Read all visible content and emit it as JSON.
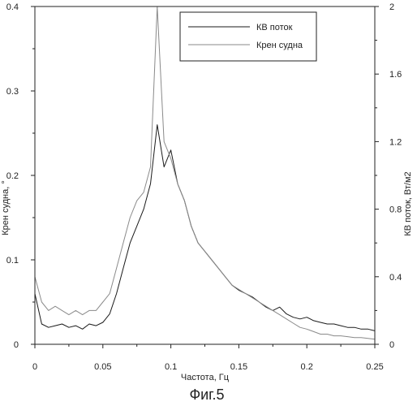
{
  "chart_data": {
    "type": "line",
    "xlabel": "Частота, Гц",
    "ylabel_left": "Крен судна, °",
    "ylabel_right": "КВ поток, Вт/м2",
    "xlim": [
      0,
      0.25
    ],
    "ylim_left": [
      0,
      0.4
    ],
    "ylim_right": [
      0,
      2
    ],
    "x_ticks": [
      "0",
      "0.05",
      "0.1",
      "0.15",
      "0.2",
      "0.25"
    ],
    "y_left_ticks": [
      "0",
      "0.1",
      "0.2",
      "0.3",
      "0.4"
    ],
    "y_right_ticks": [
      "0",
      "0.4",
      "0.8",
      "1.2",
      "1.6",
      "2"
    ],
    "grid": false,
    "legend_position": "top-right",
    "caption": "Фиг.5",
    "series": [
      {
        "name": "КВ поток",
        "axis": "right",
        "color": "#1a1a1a",
        "x": [
          0.0,
          0.005,
          0.01,
          0.015,
          0.02,
          0.025,
          0.03,
          0.035,
          0.04,
          0.045,
          0.05,
          0.055,
          0.06,
          0.065,
          0.07,
          0.075,
          0.08,
          0.085,
          0.09,
          0.095,
          0.1,
          0.105,
          0.11,
          0.115,
          0.12,
          0.125,
          0.13,
          0.135,
          0.14,
          0.145,
          0.15,
          0.155,
          0.16,
          0.165,
          0.17,
          0.175,
          0.18,
          0.185,
          0.19,
          0.195,
          0.2,
          0.205,
          0.21,
          0.215,
          0.22,
          0.225,
          0.23,
          0.235,
          0.24,
          0.245,
          0.25
        ],
        "values": [
          0.3,
          0.12,
          0.1,
          0.11,
          0.12,
          0.1,
          0.11,
          0.09,
          0.12,
          0.11,
          0.13,
          0.18,
          0.3,
          0.45,
          0.6,
          0.7,
          0.8,
          0.95,
          1.3,
          1.05,
          1.15,
          0.95,
          0.85,
          0.7,
          0.6,
          0.55,
          0.5,
          0.45,
          0.4,
          0.35,
          0.32,
          0.3,
          0.28,
          0.25,
          0.22,
          0.2,
          0.22,
          0.18,
          0.16,
          0.15,
          0.16,
          0.14,
          0.13,
          0.12,
          0.12,
          0.11,
          0.1,
          0.1,
          0.09,
          0.09,
          0.08
        ]
      },
      {
        "name": "Крен судна",
        "axis": "left",
        "color": "#8a8a8a",
        "x": [
          0.0,
          0.005,
          0.01,
          0.015,
          0.02,
          0.025,
          0.03,
          0.035,
          0.04,
          0.045,
          0.05,
          0.055,
          0.06,
          0.065,
          0.07,
          0.075,
          0.08,
          0.085,
          0.09,
          0.095,
          0.1,
          0.105,
          0.11,
          0.115,
          0.12,
          0.125,
          0.13,
          0.135,
          0.14,
          0.145,
          0.15,
          0.155,
          0.16,
          0.165,
          0.17,
          0.175,
          0.18,
          0.185,
          0.19,
          0.195,
          0.2,
          0.205,
          0.21,
          0.215,
          0.22,
          0.225,
          0.23,
          0.235,
          0.24,
          0.245,
          0.25
        ],
        "values": [
          0.08,
          0.05,
          0.04,
          0.045,
          0.04,
          0.035,
          0.04,
          0.035,
          0.04,
          0.04,
          0.05,
          0.06,
          0.09,
          0.12,
          0.15,
          0.17,
          0.18,
          0.21,
          0.4,
          0.24,
          0.22,
          0.19,
          0.17,
          0.14,
          0.12,
          0.11,
          0.1,
          0.09,
          0.08,
          0.07,
          0.065,
          0.06,
          0.055,
          0.05,
          0.045,
          0.04,
          0.035,
          0.03,
          0.025,
          0.02,
          0.018,
          0.015,
          0.012,
          0.012,
          0.01,
          0.01,
          0.009,
          0.008,
          0.008,
          0.007,
          0.006
        ]
      }
    ]
  }
}
